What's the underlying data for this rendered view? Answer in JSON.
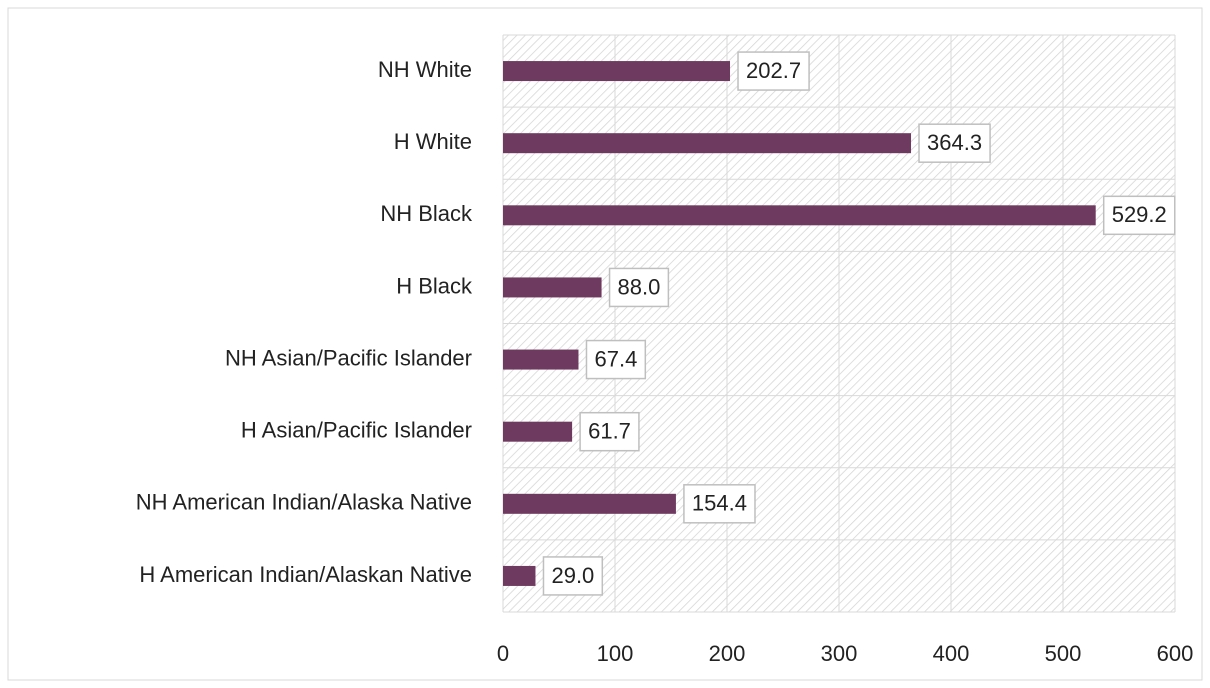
{
  "chart_data": {
    "type": "hbar",
    "categories": [
      "NH White",
      "H White",
      "NH Black",
      "H Black",
      "NH Asian/Pacific Islander",
      "H Asian/Pacific Islander",
      "NH American Indian/Alaska Native",
      "H American Indian/Alaskan Native"
    ],
    "values": [
      202.7,
      364.3,
      529.2,
      88.0,
      67.4,
      61.7,
      154.4,
      29.0
    ],
    "value_labels": [
      "202.7",
      "364.3",
      "529.2",
      "88.0",
      "67.4",
      "61.7",
      "154.4",
      "29.0"
    ],
    "color": "#6e3a5f",
    "xlim": [
      0,
      600
    ],
    "xticks": [
      0,
      100,
      200,
      300,
      400,
      500,
      600
    ],
    "grid": true
  }
}
